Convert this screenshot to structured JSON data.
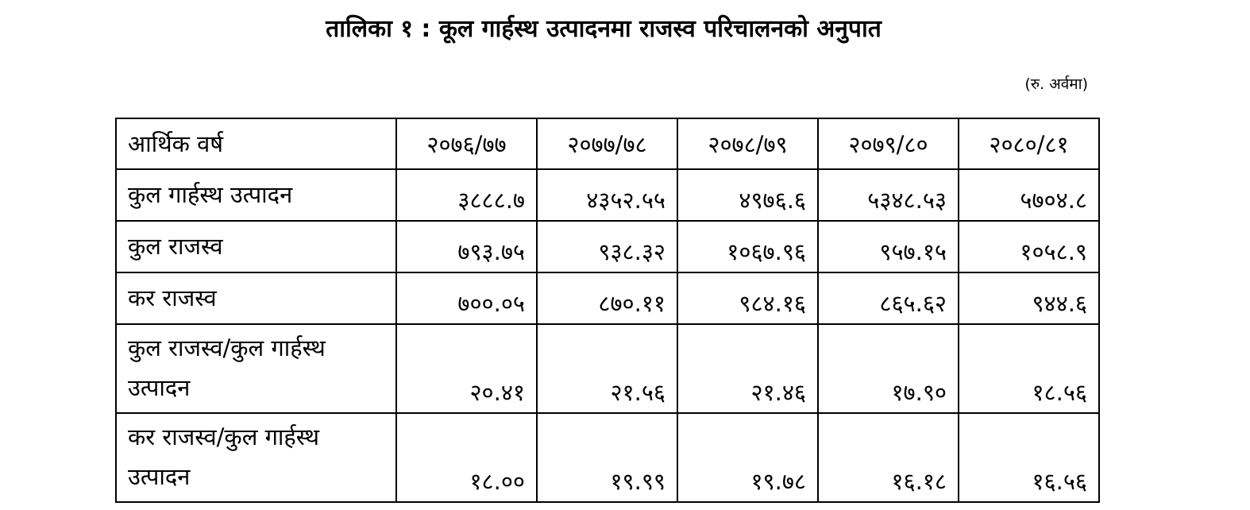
{
  "header": {
    "title": "तालिका १ : कूल गार्हस्थ उत्पादनमा राजस्व परिचालनको अनुपात",
    "unit_note": "(रु. अर्वमा)"
  },
  "table": {
    "columns": [
      "आर्थिक वर्ष",
      "२०७६/७७",
      "२०७७/७८",
      "२०७८/७९",
      "२०७९/८०",
      "२०८०/८१"
    ],
    "rows": [
      [
        "कुल गार्हस्थ उत्पादन",
        "३८८८.७",
        "४३५२.५५",
        "४९७६.६",
        "५३४८.५३",
        "५७०४.८"
      ],
      [
        "कुल राजस्व",
        "७९३.७५",
        "९३८.३२",
        "१०६७.९६",
        "९५७.१५",
        "१०५८.९"
      ],
      [
        "कर राजस्व",
        "७००.०५",
        "८७०.११",
        "९८४.१६",
        "८६५.६२",
        "९४४.६"
      ],
      [
        "कुल राजस्व/कुल गार्हस्थ उत्पादन",
        "२०.४१",
        "२१.५६",
        "२१.४६",
        "१७.९०",
        "१८.५६"
      ],
      [
        "कर राजस्व/कुल गार्हस्थ उत्पादन",
        "१८.००",
        "१९.९९",
        "१९.७८",
        "१६.१८",
        "१६.५६"
      ]
    ]
  }
}
